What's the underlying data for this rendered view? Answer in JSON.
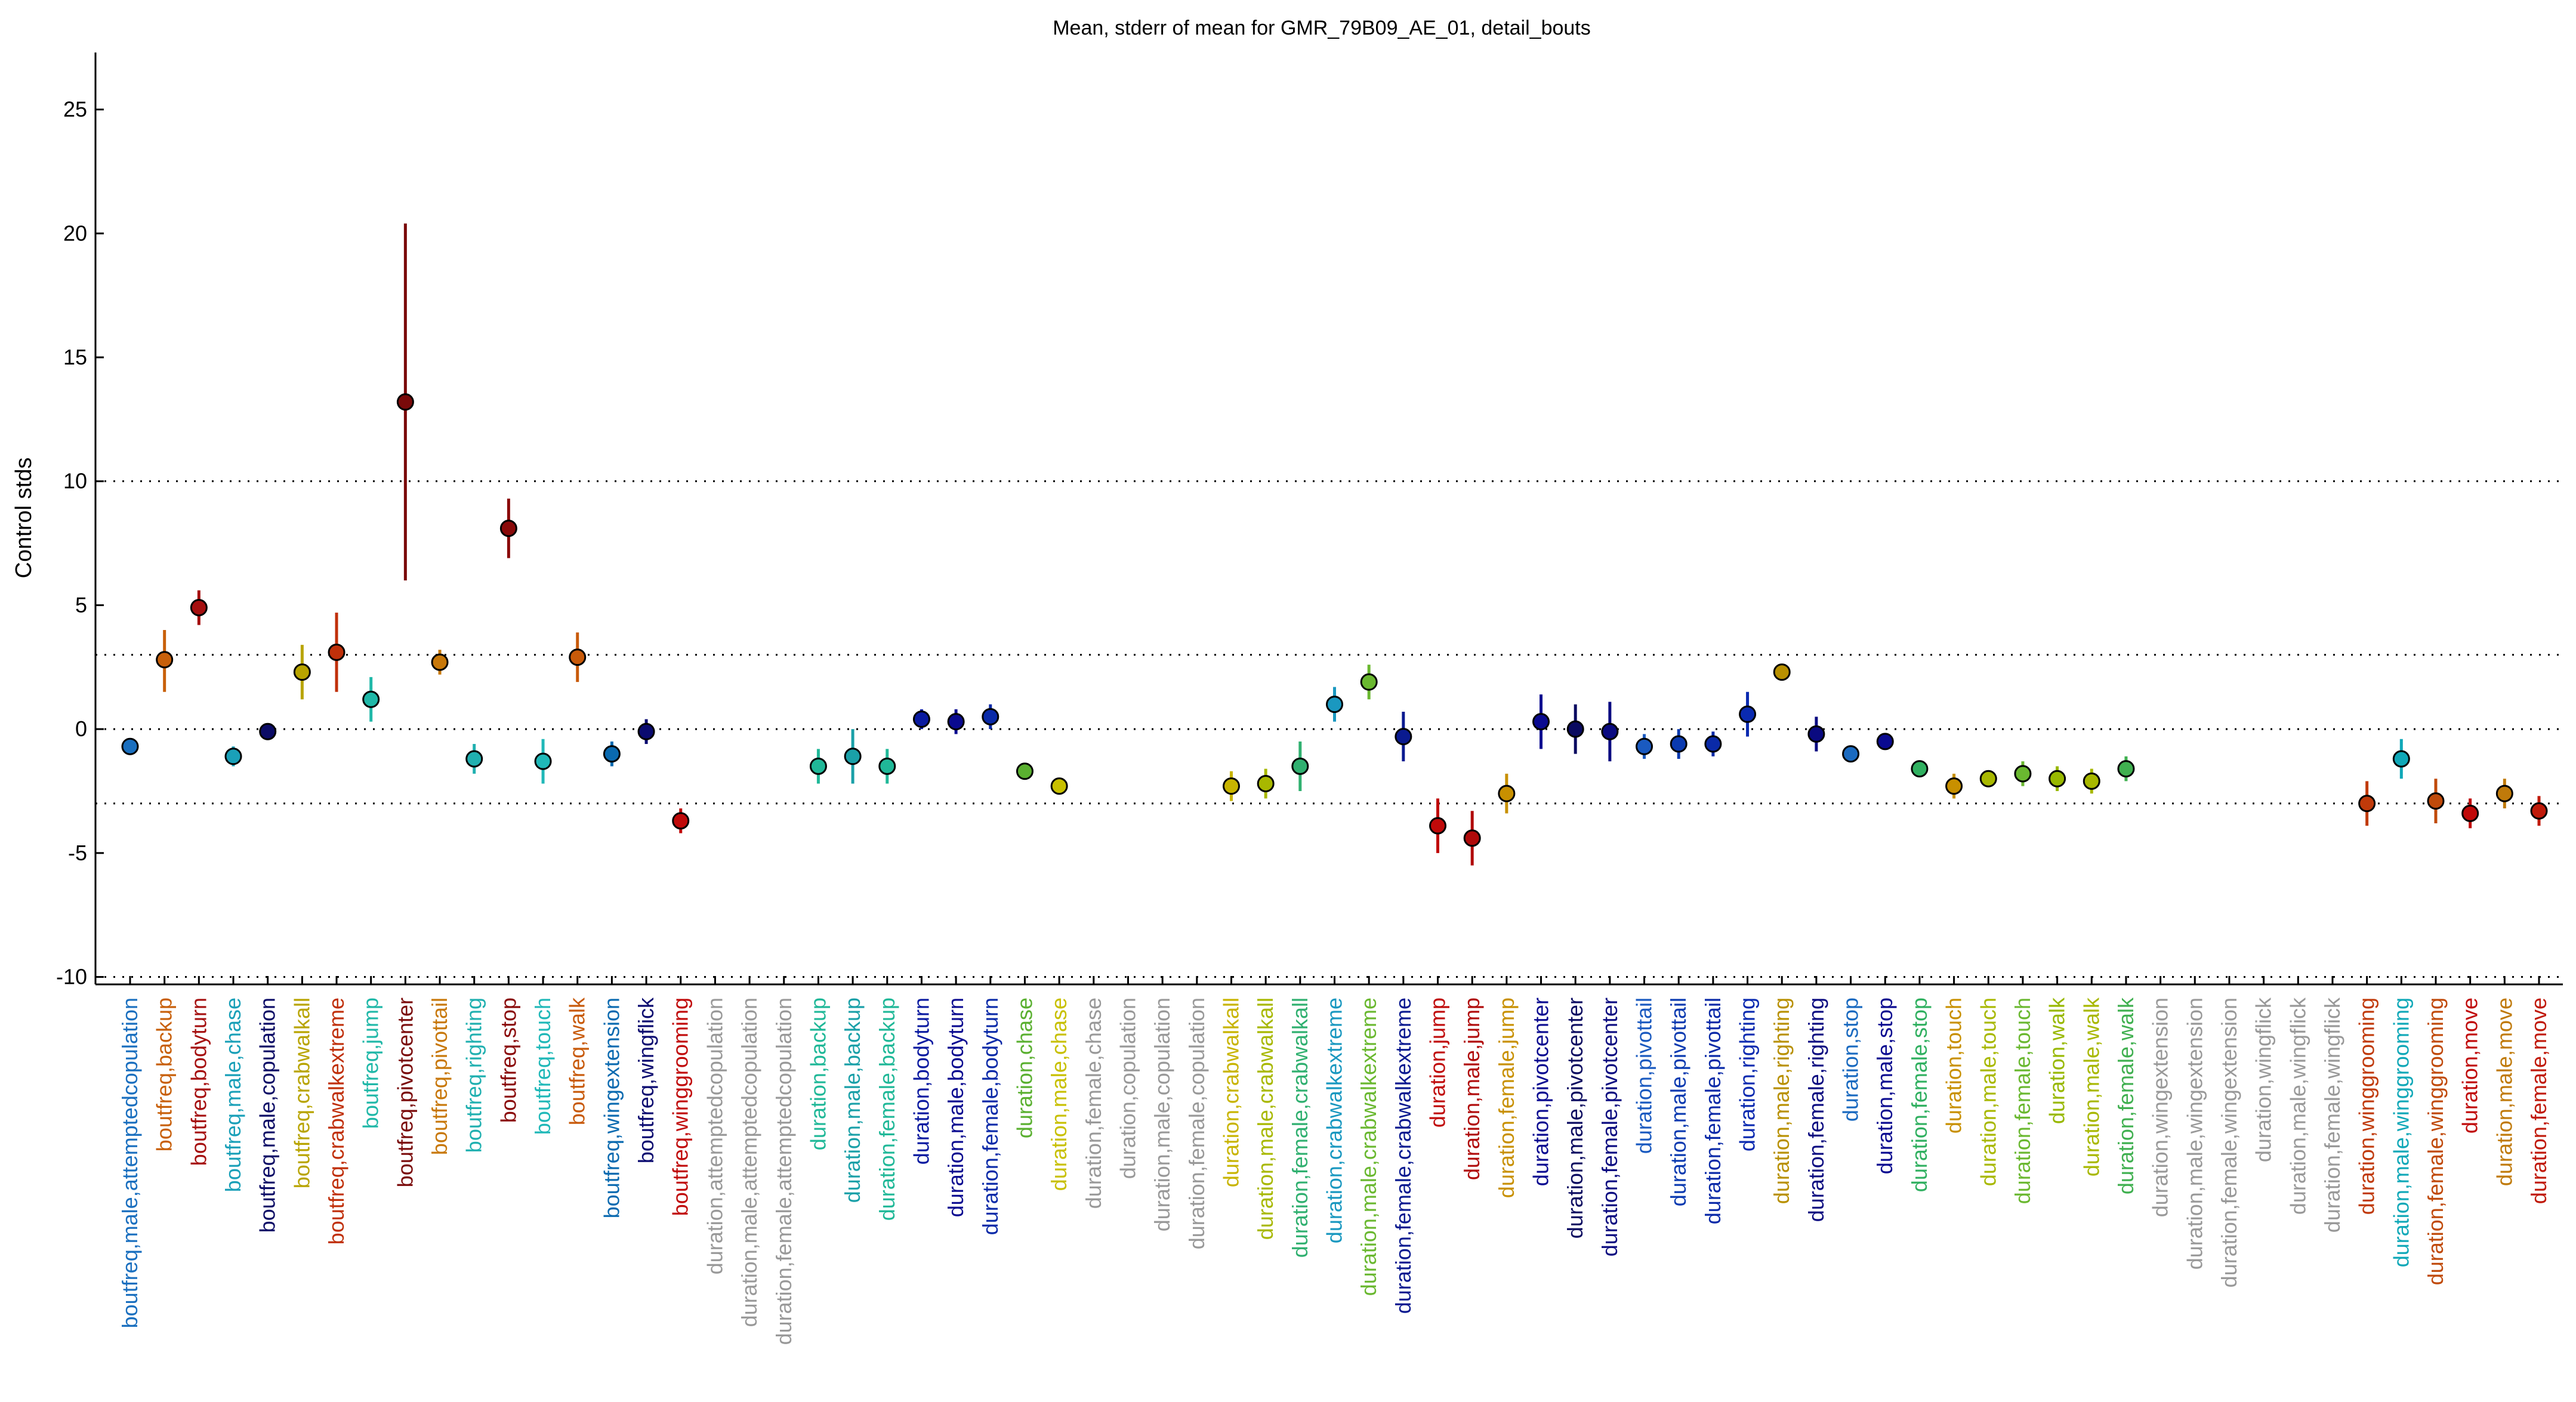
{
  "chart_data": {
    "type": "scatter",
    "title": "Mean, stderr of mean for GMR_79B09_AE_01, detail_bouts",
    "xlabel": "",
    "ylabel": "Control stds",
    "ylim": [
      -10.3,
      27.3
    ],
    "yticks": [
      -10,
      -5,
      0,
      5,
      10,
      15,
      20,
      25
    ],
    "reference_lines": [
      -10,
      -3,
      0,
      3,
      10
    ],
    "grid": false,
    "categories": [
      {
        "label": "boutfreq,male,attemptedcopulation",
        "color": "#1a6fbf",
        "mean": -0.7,
        "lo": -1.0,
        "hi": -0.4
      },
      {
        "label": "boutfreq,backup",
        "color": "#c8600a",
        "mean": 2.8,
        "lo": 1.5,
        "hi": 4.0
      },
      {
        "label": "boutfreq,bodyturn",
        "color": "#a50f0f",
        "mean": 4.9,
        "lo": 4.2,
        "hi": 5.6
      },
      {
        "label": "boutfreq,male,chase",
        "color": "#1aa0b8",
        "mean": -1.1,
        "lo": -1.5,
        "hi": -0.7
      },
      {
        "label": "boutfreq,male,copulation",
        "color": "#0b0b66",
        "mean": -0.1,
        "lo": -0.3,
        "hi": 0.1
      },
      {
        "label": "boutfreq,crabwalkall",
        "color": "#b8a400",
        "mean": 2.3,
        "lo": 1.2,
        "hi": 3.4
      },
      {
        "label": "boutfreq,crabwalkextreme",
        "color": "#c0300a",
        "mean": 3.1,
        "lo": 1.5,
        "hi": 4.7
      },
      {
        "label": "boutfreq,jump",
        "color": "#20b8a8",
        "mean": 1.2,
        "lo": 0.3,
        "hi": 2.1
      },
      {
        "label": "boutfreq,pivotcenter",
        "color": "#7a0a0a",
        "mean": 13.2,
        "lo": 6.0,
        "hi": 20.4
      },
      {
        "label": "boutfreq,pivottail",
        "color": "#c8780a",
        "mean": 2.7,
        "lo": 2.2,
        "hi": 3.2
      },
      {
        "label": "boutfreq,righting",
        "color": "#20b0b0",
        "mean": -1.2,
        "lo": -1.8,
        "hi": -0.6
      },
      {
        "label": "boutfreq,stop",
        "color": "#8a0a0a",
        "mean": 8.1,
        "lo": 6.9,
        "hi": 9.3
      },
      {
        "label": "boutfreq,touch",
        "color": "#20b8b8",
        "mean": -1.3,
        "lo": -2.2,
        "hi": -0.4
      },
      {
        "label": "boutfreq,walk",
        "color": "#c85a0a",
        "mean": 2.9,
        "lo": 1.9,
        "hi": 3.9
      },
      {
        "label": "boutfreq,wingextension",
        "color": "#0a6ab0",
        "mean": -1.0,
        "lo": -1.5,
        "hi": -0.5
      },
      {
        "label": "boutfreq,wingflick",
        "color": "#0a0a70",
        "mean": -0.1,
        "lo": -0.6,
        "hi": 0.4
      },
      {
        "label": "boutfreq,winggrooming",
        "color": "#c00a0a",
        "mean": -3.7,
        "lo": -4.2,
        "hi": -3.2
      },
      {
        "label": "duration,attemptedcopulation",
        "color": "#999999",
        "mean": null,
        "lo": null,
        "hi": null
      },
      {
        "label": "duration,male,attemptedcopulation",
        "color": "#999999",
        "mean": null,
        "lo": null,
        "hi": null
      },
      {
        "label": "duration,female,attemptedcopulation",
        "color": "#999999",
        "mean": null,
        "lo": null,
        "hi": null
      },
      {
        "label": "duration,backup",
        "color": "#20b898",
        "mean": -1.5,
        "lo": -2.2,
        "hi": -0.8
      },
      {
        "label": "duration,male,backup",
        "color": "#1aa0a8",
        "mean": -1.1,
        "lo": -2.2,
        "hi": 0.0
      },
      {
        "label": "duration,female,backup",
        "color": "#20b898",
        "mean": -1.5,
        "lo": -2.2,
        "hi": -0.8
      },
      {
        "label": "duration,bodyturn",
        "color": "#0a1aa0",
        "mean": 0.4,
        "lo": 0.0,
        "hi": 0.8
      },
      {
        "label": "duration,male,bodyturn",
        "color": "#0a0a90",
        "mean": 0.3,
        "lo": -0.2,
        "hi": 0.8
      },
      {
        "label": "duration,female,bodyturn",
        "color": "#0a2aa8",
        "mean": 0.5,
        "lo": 0.0,
        "hi": 1.0
      },
      {
        "label": "duration,chase",
        "color": "#5ab030",
        "mean": -1.7,
        "lo": -1.8,
        "hi": -1.6
      },
      {
        "label": "duration,male,chase",
        "color": "#c8c000",
        "mean": -2.3,
        "lo": -2.4,
        "hi": -2.2
      },
      {
        "label": "duration,female,chase",
        "color": "#999999",
        "mean": null,
        "lo": null,
        "hi": null
      },
      {
        "label": "duration,copulation",
        "color": "#999999",
        "mean": null,
        "lo": null,
        "hi": null
      },
      {
        "label": "duration,male,copulation",
        "color": "#999999",
        "mean": null,
        "lo": null,
        "hi": null
      },
      {
        "label": "duration,female,copulation",
        "color": "#999999",
        "mean": null,
        "lo": null,
        "hi": null
      },
      {
        "label": "duration,crabwalkall",
        "color": "#c8b400",
        "mean": -2.3,
        "lo": -2.9,
        "hi": -1.7
      },
      {
        "label": "duration,male,crabwalkall",
        "color": "#a8b800",
        "mean": -2.2,
        "lo": -2.8,
        "hi": -1.6
      },
      {
        "label": "duration,female,crabwalkall",
        "color": "#30b070",
        "mean": -1.5,
        "lo": -2.5,
        "hi": -0.5
      },
      {
        "label": "duration,crabwalkextreme",
        "color": "#1a98c0",
        "mean": 1.0,
        "lo": 0.3,
        "hi": 1.7
      },
      {
        "label": "duration,male,crabwalkextreme",
        "color": "#6ab830",
        "mean": 1.9,
        "lo": 1.2,
        "hi": 2.6
      },
      {
        "label": "duration,female,crabwalkextreme",
        "color": "#0a1a90",
        "mean": -0.3,
        "lo": -1.3,
        "hi": 0.7
      },
      {
        "label": "duration,jump",
        "color": "#c00a0a",
        "mean": -3.9,
        "lo": -5.0,
        "hi": -2.8
      },
      {
        "label": "duration,male,jump",
        "color": "#b00a0a",
        "mean": -4.4,
        "lo": -5.5,
        "hi": -3.3
      },
      {
        "label": "duration,female,jump",
        "color": "#c89000",
        "mean": -2.6,
        "lo": -3.4,
        "hi": -1.8
      },
      {
        "label": "duration,pivotcenter",
        "color": "#0a0a90",
        "mean": 0.3,
        "lo": -0.8,
        "hi": 1.4
      },
      {
        "label": "duration,male,pivotcenter",
        "color": "#0a0a60",
        "mean": 0.0,
        "lo": -1.0,
        "hi": 1.0
      },
      {
        "label": "duration,female,pivotcenter",
        "color": "#0a0a80",
        "mean": -0.1,
        "lo": -1.3,
        "hi": 1.1
      },
      {
        "label": "duration,pivottail",
        "color": "#1a5ac0",
        "mean": -0.7,
        "lo": -1.2,
        "hi": -0.2
      },
      {
        "label": "duration,male,pivottail",
        "color": "#0a3ab0",
        "mean": -0.6,
        "lo": -1.2,
        "hi": 0.0
      },
      {
        "label": "duration,female,pivottail",
        "color": "#0a2aa8",
        "mean": -0.6,
        "lo": -1.1,
        "hi": -0.1
      },
      {
        "label": "duration,righting",
        "color": "#0a2ab0",
        "mean": 0.6,
        "lo": -0.3,
        "hi": 1.5
      },
      {
        "label": "duration,male,righting",
        "color": "#b89000",
        "mean": 2.3,
        "lo": 2.2,
        "hi": 2.4
      },
      {
        "label": "duration,female,righting",
        "color": "#0a0a80",
        "mean": -0.2,
        "lo": -0.9,
        "hi": 0.5
      },
      {
        "label": "duration,stop",
        "color": "#1a6ac0",
        "mean": -1.0,
        "lo": -1.3,
        "hi": -0.7
      },
      {
        "label": "duration,male,stop",
        "color": "#0a0a90",
        "mean": -0.5,
        "lo": -0.7,
        "hi": -0.3
      },
      {
        "label": "duration,female,stop",
        "color": "#30b060",
        "mean": -1.6,
        "lo": -1.9,
        "hi": -1.3
      },
      {
        "label": "duration,touch",
        "color": "#c89000",
        "mean": -2.3,
        "lo": -2.8,
        "hi": -1.8
      },
      {
        "label": "duration,male,touch",
        "color": "#a8b800",
        "mean": -2.0,
        "lo": -2.3,
        "hi": -1.7
      },
      {
        "label": "duration,female,touch",
        "color": "#6ab830",
        "mean": -1.8,
        "lo": -2.3,
        "hi": -1.3
      },
      {
        "label": "duration,walk",
        "color": "#98b800",
        "mean": -2.0,
        "lo": -2.5,
        "hi": -1.5
      },
      {
        "label": "duration,male,walk",
        "color": "#a8b800",
        "mean": -2.1,
        "lo": -2.6,
        "hi": -1.6
      },
      {
        "label": "duration,female,walk",
        "color": "#40b050",
        "mean": -1.6,
        "lo": -2.1,
        "hi": -1.1
      },
      {
        "label": "duration,wingextension",
        "color": "#999999",
        "mean": null,
        "lo": null,
        "hi": null
      },
      {
        "label": "duration,male,wingextension",
        "color": "#999999",
        "mean": null,
        "lo": null,
        "hi": null
      },
      {
        "label": "duration,female,wingextension",
        "color": "#999999",
        "mean": null,
        "lo": null,
        "hi": null
      },
      {
        "label": "duration,wingflick",
        "color": "#999999",
        "mean": null,
        "lo": null,
        "hi": null
      },
      {
        "label": "duration,male,wingflick",
        "color": "#999999",
        "mean": null,
        "lo": null,
        "hi": null
      },
      {
        "label": "duration,female,wingflick",
        "color": "#999999",
        "mean": null,
        "lo": null,
        "hi": null
      },
      {
        "label": "duration,winggrooming",
        "color": "#c03a0a",
        "mean": -3.0,
        "lo": -3.9,
        "hi": -2.1
      },
      {
        "label": "duration,male,winggrooming",
        "color": "#10a8b8",
        "mean": -1.2,
        "lo": -2.0,
        "hi": -0.4
      },
      {
        "label": "duration,female,winggrooming",
        "color": "#c04a0a",
        "mean": -2.9,
        "lo": -3.8,
        "hi": -2.0
      },
      {
        "label": "duration,move",
        "color": "#c00a0a",
        "mean": -3.4,
        "lo": -4.0,
        "hi": -2.8
      },
      {
        "label": "duration,male,move",
        "color": "#c07a0a",
        "mean": -2.6,
        "lo": -3.2,
        "hi": -2.0
      },
      {
        "label": "duration,female,move",
        "color": "#c01a0a",
        "mean": -3.3,
        "lo": -3.9,
        "hi": -2.7
      }
    ]
  }
}
